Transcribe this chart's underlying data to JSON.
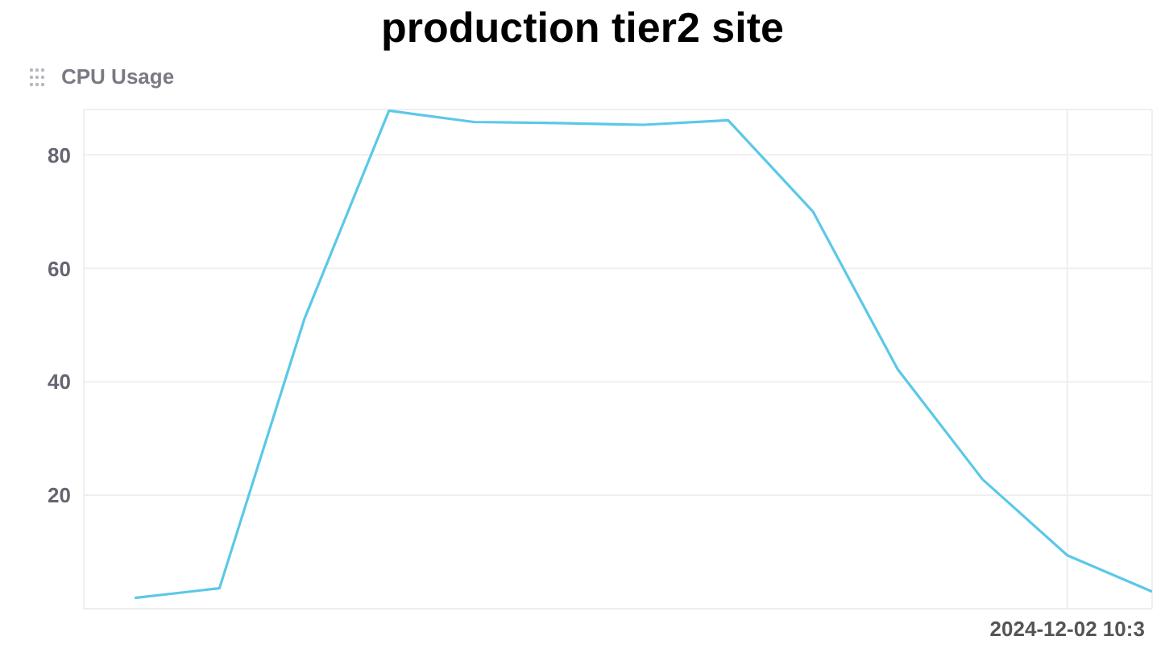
{
  "chart_data": {
    "type": "line",
    "title": "production tier2 site",
    "subtitle": "CPU Usage",
    "categories": [
      null,
      null,
      null,
      null,
      null,
      null,
      null,
      null,
      null,
      null,
      null,
      "2024-12-02 10:3",
      null
    ],
    "series": [
      {
        "color": "#5bc8e8",
        "values": [
          1.9,
          3.6,
          51,
          87.8,
          85.8,
          85.6,
          85.3,
          86.1,
          70,
          42.2,
          22.8,
          9.4,
          3
        ]
      }
    ],
    "ylim": [
      0,
      88
    ],
    "yticks": [
      20,
      40,
      60,
      80
    ],
    "grid": true,
    "marker": "none",
    "line_style": "solid"
  }
}
